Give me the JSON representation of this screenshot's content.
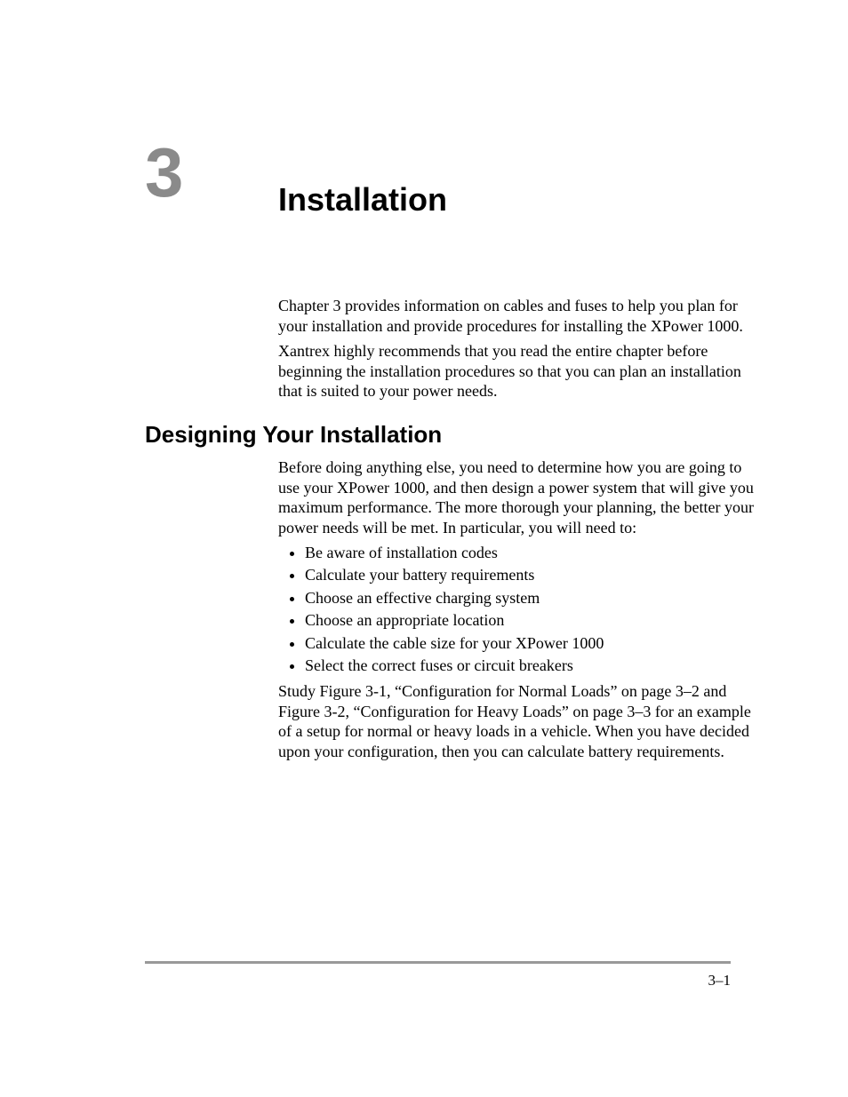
{
  "colors": {
    "text": "#000000",
    "chapter_number": "#8a8a8a",
    "rule": "#999999",
    "background": "#ffffff"
  },
  "typography": {
    "body_font": "Times New Roman",
    "heading_font": "Segoe UI",
    "chapter_number_fontsize": 78,
    "chapter_title_fontsize": 36,
    "section_heading_fontsize": 26,
    "body_fontsize": 18,
    "pagenum_fontsize": 17
  },
  "chapter": {
    "number": "3",
    "title": "Installation"
  },
  "intro": {
    "p1": "Chapter 3 provides information on cables and fuses to help you plan for your installation and provide procedures for installing the XPower 1000.",
    "p2": "Xantrex highly recommends that you read the entire chapter before beginning the installation procedures so that you can plan an installation that is suited to your power needs."
  },
  "section": {
    "heading": "Designing Your Installation",
    "lead": "Before doing anything else, you need to determine how you are going to use your XPower 1000, and then design a power system that will give you maximum performance. The more thorough your planning, the better your power needs will be met. In particular, you will need to:",
    "bullets": [
      "Be aware of installation codes",
      "Calculate your battery requirements",
      "Choose an effective charging system",
      "Choose an appropriate location",
      "Calculate the cable size for your XPower 1000",
      "Select the correct fuses or circuit breakers"
    ],
    "trailing": "Study Figure 3-1, “Configuration for Normal Loads” on page 3–2 and Figure 3-2, “Configuration for Heavy Loads” on page 3–3 for an example of a setup for normal or heavy loads in a vehicle. When you have decided upon your configuration, then you can calculate battery requirements."
  },
  "footer": {
    "page_number": "3–1"
  }
}
